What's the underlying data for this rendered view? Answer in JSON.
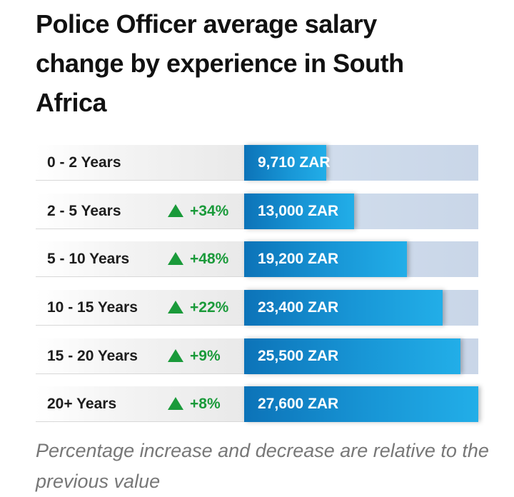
{
  "title": "Police Officer average salary change by experience in South Africa",
  "footnote": "Percentage increase and decrease are relative to the previous value",
  "colors": {
    "bar": "#1896d6",
    "track": "#d4e0ee",
    "increase": "#1a9a3a"
  },
  "chart_data": {
    "type": "bar",
    "orientation": "horizontal",
    "title": "Police Officer average salary change by experience in South Africa",
    "categories": [
      "0 - 2 Years",
      "2 - 5 Years",
      "5 - 10 Years",
      "10 - 15 Years",
      "15 - 20 Years",
      "20+ Years"
    ],
    "values": [
      9710,
      13000,
      19200,
      23400,
      25500,
      27600
    ],
    "value_labels": [
      "9,710 ZAR",
      "13,000 ZAR",
      "19,200 ZAR",
      "23,400 ZAR",
      "25,500 ZAR",
      "27,600 ZAR"
    ],
    "changes": [
      "",
      "+34%",
      "+48%",
      "+22%",
      "+9%",
      "+8%"
    ],
    "unit": "ZAR",
    "xlim": [
      0,
      27600
    ]
  }
}
